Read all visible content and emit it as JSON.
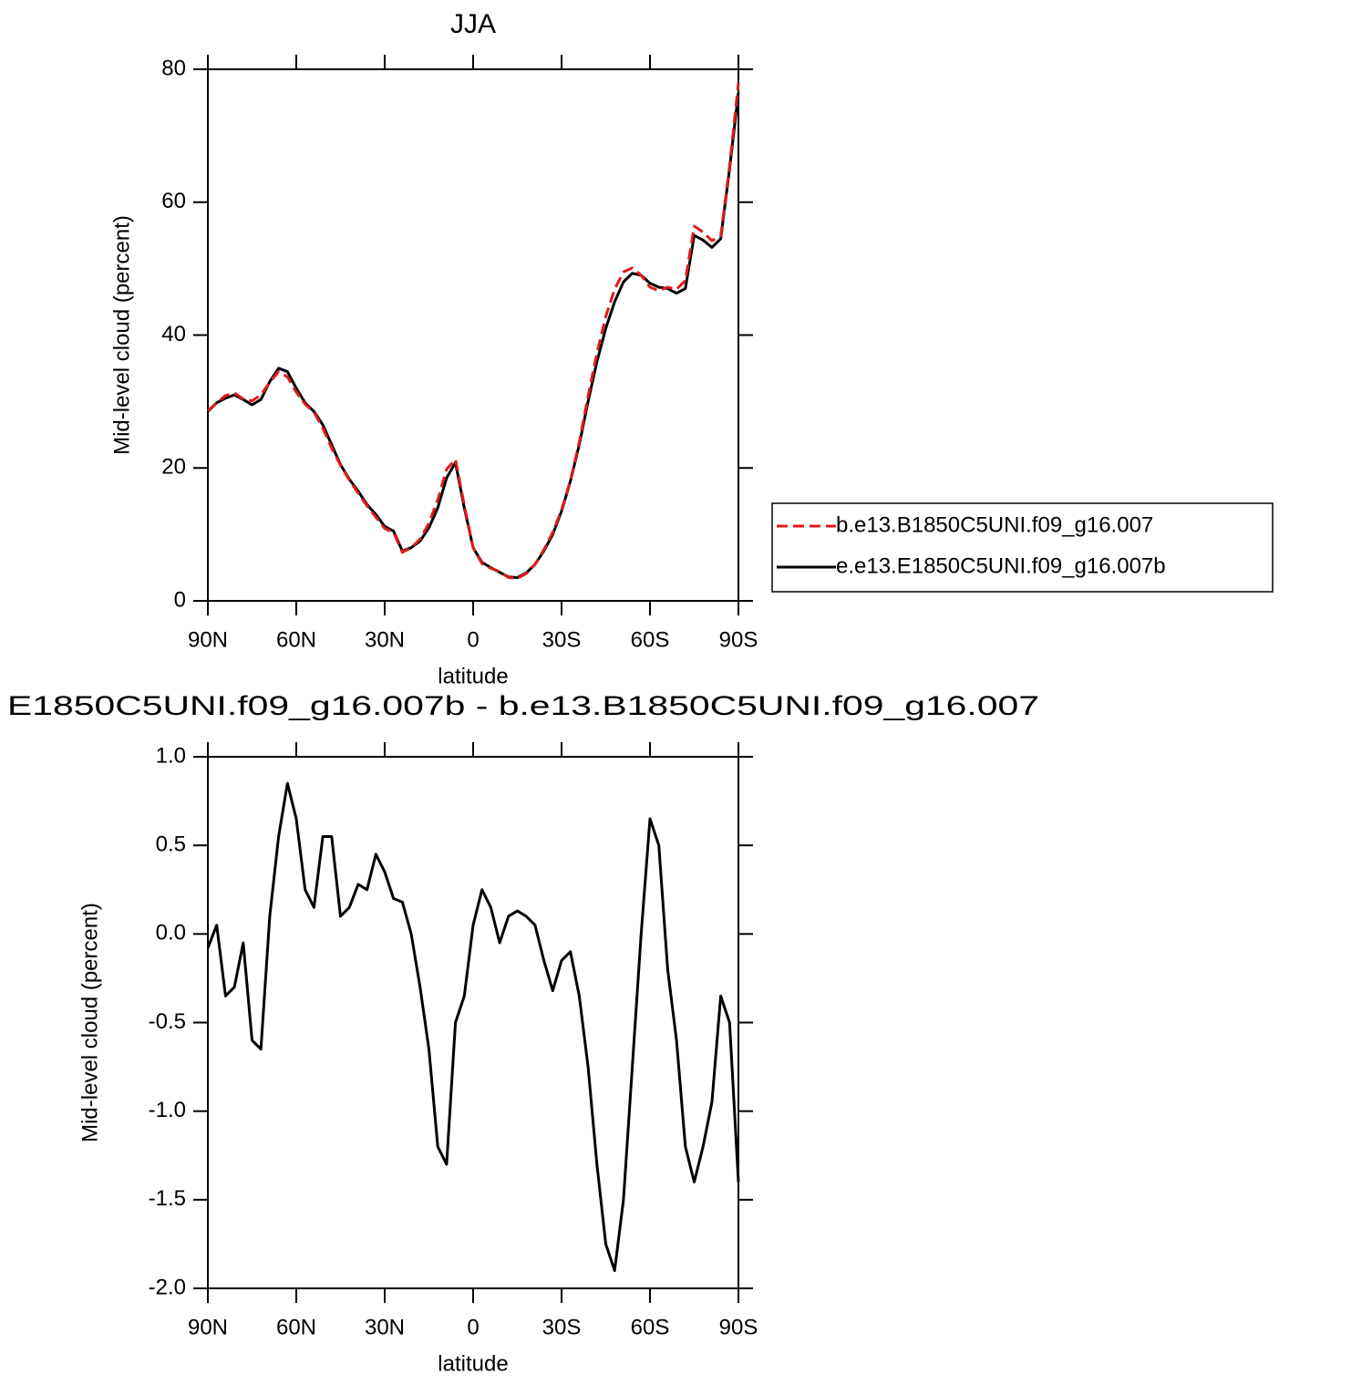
{
  "chart_data": [
    {
      "type": "line",
      "title": "JJA",
      "xlabel": "latitude",
      "ylabel": "Mid-level cloud (percent)",
      "x": [
        90,
        87,
        84,
        81,
        78,
        75,
        72,
        69,
        66,
        63,
        60,
        57,
        54,
        51,
        48,
        45,
        42,
        39,
        36,
        33,
        30,
        27,
        24,
        21,
        18,
        15,
        12,
        9,
        6,
        3,
        0,
        -3,
        -6,
        -9,
        -12,
        -15,
        -18,
        -21,
        -24,
        -27,
        -30,
        -33,
        -36,
        -39,
        -42,
        -45,
        -48,
        -51,
        -54,
        -57,
        -60,
        -63,
        -66,
        -69,
        -72,
        -75,
        -78,
        -81,
        -84,
        -87,
        -90
      ],
      "series": [
        {
          "name": "b.e13.B1850C5UNI.f09_g16.007",
          "color": "#e31a1c",
          "style": "dashed",
          "values": [
            28.6,
            29.8,
            30.9,
            31.3,
            30.4,
            30.1,
            31.0,
            32.9,
            34.5,
            33.7,
            31.4,
            29.6,
            28.4,
            26.0,
            23.0,
            20.4,
            18.2,
            16.2,
            14.3,
            12.6,
            10.9,
            10.3,
            7.3,
            8.0,
            9.3,
            11.7,
            15.2,
            19.8,
            21.3,
            14.4,
            8.0,
            5.6,
            4.9,
            4.4,
            3.5,
            3.4,
            4.1,
            5.5,
            7.7,
            10.3,
            13.7,
            18.1,
            23.9,
            30.8,
            37.3,
            42.8,
            46.9,
            49.5,
            50.1,
            49.0,
            47.2,
            46.7,
            47.2,
            46.9,
            48.2,
            56.4,
            55.5,
            54.2,
            54.9,
            65.5,
            77.9
          ]
        },
        {
          "name": "e.e13.E1850C5UNI.f09_g16.007b",
          "color": "#000000",
          "style": "solid",
          "values": [
            28.5,
            29.8,
            30.5,
            31.0,
            30.3,
            29.5,
            30.3,
            33.0,
            35.0,
            34.5,
            32.0,
            29.8,
            28.5,
            26.5,
            23.5,
            20.5,
            18.3,
            16.5,
            14.5,
            13.0,
            11.2,
            10.5,
            7.5,
            8.0,
            9.0,
            11.0,
            14.0,
            18.5,
            20.8,
            14.0,
            8.0,
            5.8,
            5.0,
            4.3,
            3.6,
            3.5,
            4.2,
            5.5,
            7.5,
            10.0,
            13.5,
            18.0,
            23.5,
            30.0,
            36.0,
            41.0,
            45.0,
            48.0,
            49.3,
            49.0,
            47.8,
            47.2,
            47.0,
            46.3,
            47.0,
            55.0,
            54.3,
            53.2,
            54.5,
            65.0,
            76.5
          ]
        }
      ],
      "xlim": [
        90,
        -90
      ],
      "xticks": [
        {
          "value": 90,
          "label": "90N"
        },
        {
          "value": 60,
          "label": "60N"
        },
        {
          "value": 30,
          "label": "30N"
        },
        0,
        {
          "value": -30,
          "label": "30S"
        },
        {
          "value": -60,
          "label": "60S"
        },
        {
          "value": -90,
          "label": "90S"
        }
      ],
      "ylim": [
        0,
        80
      ],
      "yticks": [
        0,
        20,
        40,
        60,
        80
      ],
      "legend": "right"
    },
    {
      "type": "line",
      "title": "E1850C5UNI.f09_g16.007b - b.e13.B1850C5UNI.f09_g16.007",
      "xlabel": "latitude",
      "ylabel": "Mid-level cloud (percent)",
      "x": [
        90,
        87,
        84,
        81,
        78,
        75,
        72,
        69,
        66,
        63,
        60,
        57,
        54,
        51,
        48,
        45,
        42,
        39,
        36,
        33,
        30,
        27,
        24,
        21,
        18,
        15,
        12,
        9,
        6,
        3,
        0,
        -3,
        -6,
        -9,
        -12,
        -15,
        -18,
        -21,
        -24,
        -27,
        -30,
        -33,
        -36,
        -39,
        -42,
        -45,
        -48,
        -51,
        -54,
        -57,
        -60,
        -63,
        -66,
        -69,
        -72,
        -75,
        -78,
        -81,
        -84,
        -87,
        -90
      ],
      "values": [
        -0.08,
        0.05,
        -0.35,
        -0.3,
        -0.05,
        -0.6,
        -0.65,
        0.1,
        0.55,
        0.85,
        0.65,
        0.25,
        0.15,
        0.55,
        0.55,
        0.1,
        0.15,
        0.28,
        0.25,
        0.45,
        0.35,
        0.2,
        0.18,
        0.0,
        -0.3,
        -0.65,
        -1.2,
        -1.3,
        -0.5,
        -0.35,
        0.05,
        0.25,
        0.15,
        -0.05,
        0.1,
        0.13,
        0.1,
        0.05,
        -0.15,
        -0.32,
        -0.15,
        -0.1,
        -0.35,
        -0.75,
        -1.3,
        -1.75,
        -1.9,
        -1.5,
        -0.75,
        0.0,
        0.65,
        0.5,
        -0.2,
        -0.6,
        -1.2,
        -1.4,
        -1.2,
        -0.95,
        -0.35,
        -0.5,
        -1.4
      ],
      "color": "#000000",
      "xlim": [
        90,
        -90
      ],
      "xticks": [
        {
          "value": 90,
          "label": "90N"
        },
        {
          "value": 60,
          "label": "60N"
        },
        {
          "value": 30,
          "label": "30N"
        },
        0,
        {
          "value": -30,
          "label": "30S"
        },
        {
          "value": -60,
          "label": "60S"
        },
        {
          "value": -90,
          "label": "90S"
        }
      ],
      "ylim": [
        -2,
        1
      ],
      "yticks": [
        {
          "value": 1,
          "label": "1.0"
        },
        {
          "value": 0.5,
          "label": "0.5"
        },
        {
          "value": 0,
          "label": "0.0"
        },
        {
          "value": -0.5,
          "label": "-0.5"
        },
        {
          "value": -1,
          "label": "-1.0"
        },
        {
          "value": -1.5,
          "label": "-1.5"
        },
        {
          "value": -2,
          "label": "-2.0"
        }
      ]
    }
  ]
}
